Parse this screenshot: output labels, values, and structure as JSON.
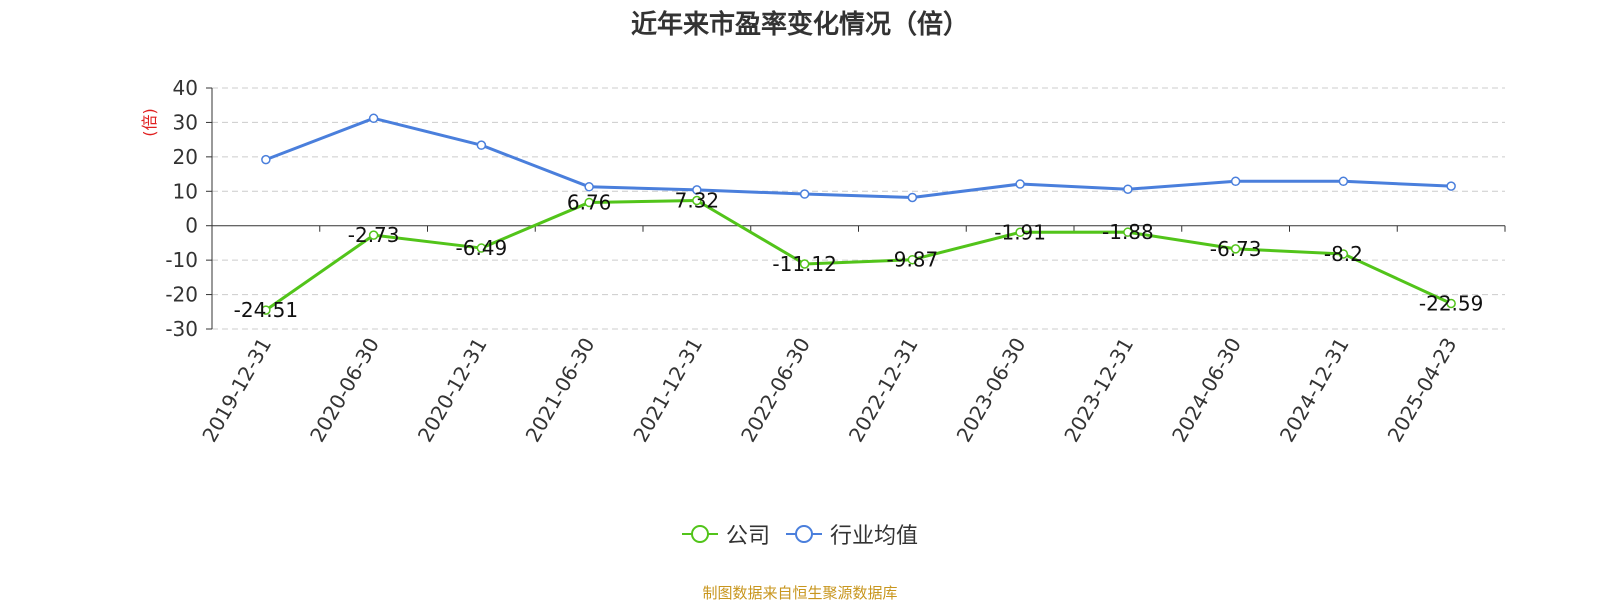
{
  "chart_data": {
    "type": "line",
    "title": "近年来市盈率变化情况（倍）",
    "ylabel": "(倍)",
    "xlabel": "",
    "categories": [
      "2019-12-31",
      "2020-06-30",
      "2020-12-31",
      "2021-06-30",
      "2021-12-31",
      "2022-06-30",
      "2022-12-31",
      "2023-06-30",
      "2023-12-31",
      "2024-06-30",
      "2024-12-31",
      "2025-04-23"
    ],
    "ylim": [
      -30,
      40
    ],
    "yticks": [
      40,
      30,
      20,
      10,
      0,
      -10,
      -20,
      -30
    ],
    "grid": true,
    "legend_position": "bottom",
    "series": [
      {
        "name": "公司",
        "color": "#52c41a",
        "values": [
          -24.51,
          -2.73,
          -6.49,
          6.76,
          7.32,
          -11.12,
          -9.87,
          -1.91,
          -1.88,
          -6.73,
          -8.2,
          -22.59
        ],
        "labels": [
          "-24.51",
          "-2.73",
          "-6.49",
          "6.76",
          "7.32",
          "-11.12",
          "-9.87",
          "-1.91",
          "-1.88",
          "-6.73",
          "-8.2",
          "-22.59"
        ]
      },
      {
        "name": "行业均值",
        "color": "#4a7fdc",
        "values": [
          19.2,
          31.2,
          23.4,
          11.3,
          10.4,
          9.2,
          8.2,
          12.1,
          10.6,
          12.9,
          12.9,
          11.5
        ]
      }
    ]
  },
  "source": "制图数据来自恒生聚源数据库"
}
